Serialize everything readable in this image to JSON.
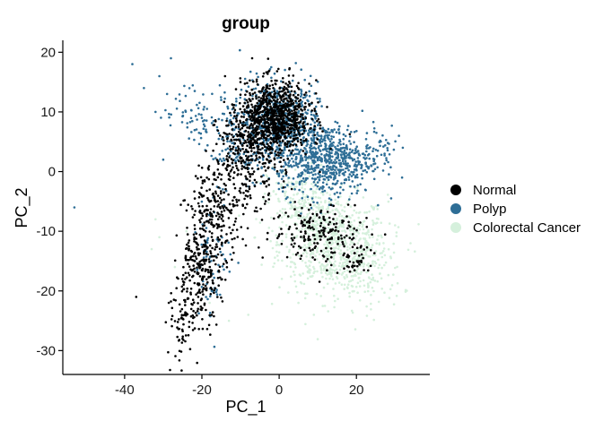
{
  "chart_data": {
    "type": "scatter",
    "title": "group",
    "xlabel": "PC_1",
    "ylabel": "PC_2",
    "xlim": [
      -56,
      39
    ],
    "ylim": [
      -34,
      22
    ],
    "xticks": [
      -40,
      -20,
      0,
      20
    ],
    "yticks": [
      -30,
      -20,
      -10,
      0,
      10,
      20
    ],
    "grid": false,
    "legend_position": "right",
    "series": [
      {
        "name": "Normal",
        "color": "#000000",
        "clusters": [
          {
            "center": [
              -1,
              9
            ],
            "spread": [
              4.5,
              3
            ],
            "n": 900
          },
          {
            "center": [
              -8,
              3
            ],
            "spread": [
              4,
              4
            ],
            "n": 300
          },
          {
            "center": [
              -16,
              -6
            ],
            "spread": [
              3.5,
              4
            ],
            "n": 220
          },
          {
            "center": [
              -21,
              -17
            ],
            "spread": [
              3,
              4
            ],
            "n": 260
          },
          {
            "center": [
              -25,
              -26
            ],
            "spread": [
              2,
              3
            ],
            "n": 60
          },
          {
            "center": [
              10,
              -10
            ],
            "spread": [
              6,
              2.5
            ],
            "n": 180
          },
          {
            "center": [
              20,
              -14
            ],
            "spread": [
              3,
              2
            ],
            "n": 50
          }
        ],
        "points": [
          [
            -37,
            -21
          ],
          [
            -7,
            19
          ],
          [
            -10,
            15
          ],
          [
            -14,
            16
          ],
          [
            -3,
            14
          ],
          [
            18,
            -16
          ]
        ]
      },
      {
        "name": "Polyp",
        "color": "#2e6e96",
        "clusters": [
          {
            "center": [
              0,
              8
            ],
            "spread": [
              5,
              3.5
            ],
            "n": 550
          },
          {
            "center": [
              12,
              2
            ],
            "spread": [
              6,
              3
            ],
            "n": 650
          },
          {
            "center": [
              -12,
              6
            ],
            "spread": [
              5,
              4
            ],
            "n": 150
          },
          {
            "center": [
              -24,
              10
            ],
            "spread": [
              3,
              2
            ],
            "n": 40
          },
          {
            "center": [
              -17,
              -14
            ],
            "spread": [
              2.5,
              5
            ],
            "n": 70
          },
          {
            "center": [
              26,
              4
            ],
            "spread": [
              3,
              2
            ],
            "n": 40
          }
        ],
        "points": [
          [
            -53,
            -6
          ],
          [
            -38,
            18
          ],
          [
            -31,
            16
          ],
          [
            -28,
            19
          ],
          [
            -32,
            10
          ],
          [
            -29,
            13
          ],
          [
            -30,
            2
          ],
          [
            -35,
            14
          ],
          [
            31,
            6
          ],
          [
            32,
            4
          ],
          [
            -20,
            9
          ],
          [
            -15,
            12
          ]
        ]
      },
      {
        "name": "Colorectal Cancer",
        "color": "#d5f0dc",
        "clusters": [
          {
            "center": [
              14,
              -12
            ],
            "spread": [
              7,
              4
            ],
            "n": 700
          },
          {
            "center": [
              5,
              -5
            ],
            "spread": [
              4,
              3
            ],
            "n": 200
          },
          {
            "center": [
              22,
              -17
            ],
            "spread": [
              5,
              3
            ],
            "n": 120
          }
        ],
        "points": [
          [
            -32,
            -8
          ],
          [
            -31,
            -11
          ],
          [
            -27,
            -16
          ],
          [
            -33,
            -13
          ],
          [
            -13,
            -25
          ],
          [
            -8,
            -24
          ],
          [
            5,
            -22
          ],
          [
            9,
            -24
          ],
          [
            30,
            -9
          ],
          [
            34,
            -12
          ],
          [
            -24,
            -10
          ],
          [
            -18,
            -22
          ]
        ]
      }
    ]
  }
}
